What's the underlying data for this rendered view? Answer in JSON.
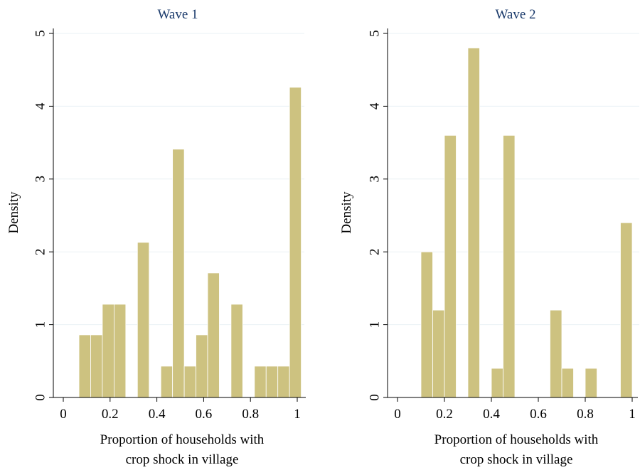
{
  "colors": {
    "bar": "#cdc280",
    "title": "#1a3a6b",
    "grid": "#eaf0f4"
  },
  "chart_data": [
    {
      "type": "bar",
      "title": "Wave 1",
      "xlabel_lines": [
        "Proportion of households with",
        "crop shock in village"
      ],
      "ylabel": "Density",
      "xlim": [
        0,
        1
      ],
      "ylim": [
        0,
        5
      ],
      "xticks": [
        0,
        0.2,
        0.4,
        0.6,
        0.8,
        1
      ],
      "xtick_labels": [
        "0",
        "0.2",
        "0.4",
        "0.6",
        "0.8",
        "1"
      ],
      "yticks": [
        0,
        1,
        2,
        3,
        4,
        5
      ],
      "ytick_labels": [
        "0",
        "1",
        "2",
        "3",
        "4",
        "5"
      ],
      "grid": true,
      "bins": [
        {
          "x0": 0.067,
          "x1": 0.117,
          "value": 0.86
        },
        {
          "x0": 0.117,
          "x1": 0.167,
          "value": 0.86
        },
        {
          "x0": 0.167,
          "x1": 0.217,
          "value": 1.28
        },
        {
          "x0": 0.217,
          "x1": 0.267,
          "value": 1.28
        },
        {
          "x0": 0.317,
          "x1": 0.367,
          "value": 2.13
        },
        {
          "x0": 0.417,
          "x1": 0.467,
          "value": 0.43
        },
        {
          "x0": 0.467,
          "x1": 0.517,
          "value": 3.41
        },
        {
          "x0": 0.517,
          "x1": 0.567,
          "value": 0.43
        },
        {
          "x0": 0.567,
          "x1": 0.617,
          "value": 0.86
        },
        {
          "x0": 0.617,
          "x1": 0.667,
          "value": 1.71
        },
        {
          "x0": 0.717,
          "x1": 0.767,
          "value": 1.28
        },
        {
          "x0": 0.817,
          "x1": 0.867,
          "value": 0.43
        },
        {
          "x0": 0.867,
          "x1": 0.917,
          "value": 0.43
        },
        {
          "x0": 0.917,
          "x1": 0.967,
          "value": 0.43
        },
        {
          "x0": 0.967,
          "x1": 1.017,
          "value": 4.26
        }
      ]
    },
    {
      "type": "bar",
      "title": "Wave 2",
      "xlabel_lines": [
        "Proportion of households with",
        "crop shock in village"
      ],
      "ylabel": "Density",
      "xlim": [
        0,
        1
      ],
      "ylim": [
        0,
        5
      ],
      "xticks": [
        0,
        0.2,
        0.4,
        0.6,
        0.8,
        1
      ],
      "xtick_labels": [
        "0",
        "0.2",
        "0.4",
        "0.6",
        "0.8",
        "1"
      ],
      "yticks": [
        0,
        1,
        2,
        3,
        4,
        5
      ],
      "ytick_labels": [
        "0",
        "1",
        "2",
        "3",
        "4",
        "5"
      ],
      "grid": true,
      "bins": [
        {
          "x0": 0.1,
          "x1": 0.15,
          "value": 2.0
        },
        {
          "x0": 0.15,
          "x1": 0.2,
          "value": 1.2
        },
        {
          "x0": 0.2,
          "x1": 0.25,
          "value": 3.6
        },
        {
          "x0": 0.3,
          "x1": 0.35,
          "value": 4.8
        },
        {
          "x0": 0.4,
          "x1": 0.45,
          "value": 0.4
        },
        {
          "x0": 0.45,
          "x1": 0.5,
          "value": 3.6
        },
        {
          "x0": 0.65,
          "x1": 0.7,
          "value": 1.2
        },
        {
          "x0": 0.7,
          "x1": 0.75,
          "value": 0.4
        },
        {
          "x0": 0.8,
          "x1": 0.85,
          "value": 0.4
        },
        {
          "x0": 0.95,
          "x1": 1.0,
          "value": 2.4
        }
      ]
    }
  ]
}
